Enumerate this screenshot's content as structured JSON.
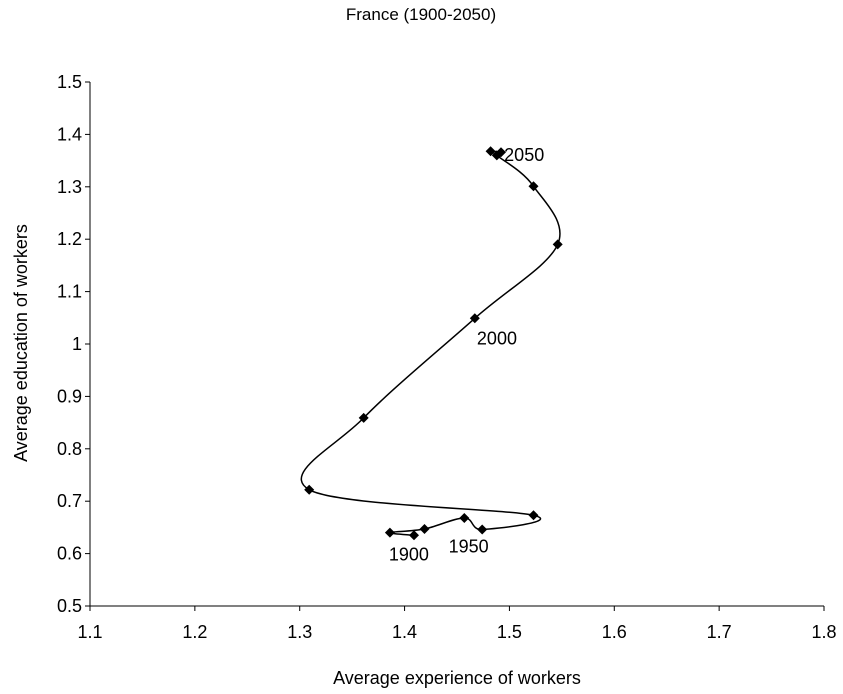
{
  "chart_data": {
    "type": "scatter",
    "title": "France (1900-2050)",
    "xlabel": "Average experience of workers",
    "ylabel": "Average education of workers",
    "xlim": [
      1.1,
      1.8
    ],
    "ylim": [
      0.5,
      1.5
    ],
    "xticks": [
      "1.1",
      "1.2",
      "1.3",
      "1.4",
      "1.5",
      "1.6",
      "1.7",
      "1.8"
    ],
    "yticks": [
      "0.5",
      "0.6",
      "0.7",
      "0.8",
      "0.9",
      "1",
      "1.1",
      "1.2",
      "1.3",
      "1.4",
      "1.5"
    ],
    "grid": false,
    "legend": "none",
    "marker": "diamond",
    "smooth_line": true,
    "series": [
      {
        "points": [
          {
            "x": 1.409,
            "y": 0.635
          },
          {
            "x": 1.386,
            "y": 0.64
          },
          {
            "x": 1.419,
            "y": 0.647
          },
          {
            "x": 1.457,
            "y": 0.668
          },
          {
            "x": 1.474,
            "y": 0.646
          },
          {
            "x": 1.523,
            "y": 0.673
          },
          {
            "x": 1.309,
            "y": 0.722
          },
          {
            "x": 1.361,
            "y": 0.859
          },
          {
            "x": 1.467,
            "y": 1.049
          },
          {
            "x": 1.546,
            "y": 1.19
          },
          {
            "x": 1.523,
            "y": 1.301
          },
          {
            "x": 1.488,
            "y": 1.36
          },
          {
            "x": 1.482,
            "y": 1.368
          },
          {
            "x": 1.492,
            "y": 1.366
          }
        ]
      }
    ],
    "annotations": [
      {
        "text": "1900",
        "x": 1.385,
        "y": 0.6
      },
      {
        "text": "1950",
        "x": 1.442,
        "y": 0.615
      },
      {
        "text": "2000",
        "x": 1.469,
        "y": 1.012
      },
      {
        "text": "2050",
        "x": 1.495,
        "y": 1.363
      }
    ]
  }
}
